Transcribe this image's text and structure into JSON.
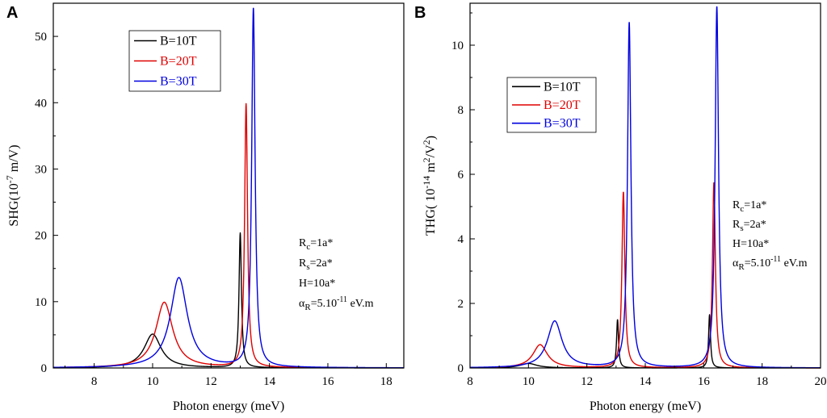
{
  "chart_data": [
    {
      "panel": "A",
      "type": "line",
      "ylabel": "SHG(10-7 m/V)",
      "ylabel_base": "SHG(10",
      "ylabel_exp": "-7",
      "ylabel_unit": " m/V)",
      "xlabel": "Photon energy (meV)",
      "xlim": [
        6.6,
        18.6
      ],
      "ylim": [
        0,
        55
      ],
      "xticks": [
        8,
        10,
        12,
        14,
        16,
        18
      ],
      "yticks": [
        0,
        10,
        20,
        30,
        40,
        50
      ],
      "legend": {
        "placement": "top-left"
      },
      "series": [
        {
          "name": "B=10T",
          "color": "#000000",
          "peaks": [
            {
              "x": 10.0,
              "y": 5.1,
              "gamma": 0.35
            },
            {
              "x": 13.0,
              "y": 20.3,
              "gamma": 0.05
            }
          ]
        },
        {
          "name": "B=20T",
          "color": "#e00000",
          "peaks": [
            {
              "x": 10.4,
              "y": 9.9,
              "gamma": 0.35
            },
            {
              "x": 13.2,
              "y": 39.7,
              "gamma": 0.06
            }
          ]
        },
        {
          "name": "B=30T",
          "color": "#0000e0",
          "peaks": [
            {
              "x": 10.9,
              "y": 13.6,
              "gamma": 0.35
            },
            {
              "x": 13.45,
              "y": 54.1,
              "gamma": 0.07
            }
          ]
        }
      ],
      "annotations": [
        {
          "base": "R",
          "sub": "c",
          "rest": "=1a*"
        },
        {
          "base": "R",
          "sub": "s",
          "rest": "=2a*"
        },
        {
          "base": "H=10a*",
          "sub": "",
          "rest": ""
        },
        {
          "base": "α",
          "sub": "R",
          "rest": "=5.10",
          "sup": "-11",
          "tail": " eV.m"
        }
      ]
    },
    {
      "panel": "B",
      "type": "line",
      "ylabel": "THG( 10-14 m2/V2)",
      "ylabel_base": "THG( 10",
      "ylabel_exp": "-14",
      "ylabel_mid": " m",
      "ylabel_exp2": "2",
      "ylabel_unit": "/V",
      "ylabel_exp3": "2",
      "ylabel_close": ")",
      "xlabel": "Photon energy (meV)",
      "xlim": [
        8,
        20
      ],
      "ylim": [
        0,
        11.3
      ],
      "xticks": [
        8,
        10,
        12,
        14,
        16,
        18,
        20
      ],
      "yticks": [
        0,
        2,
        4,
        6,
        8,
        10
      ],
      "legend": {
        "placement": "upper-left"
      },
      "series": [
        {
          "name": "B=10T",
          "color": "#000000",
          "peaks": [
            {
              "x": 10.0,
              "y": 0.14,
              "gamma": 0.35
            },
            {
              "x": 13.05,
              "y": 1.5,
              "gamma": 0.04
            },
            {
              "x": 16.2,
              "y": 1.65,
              "gamma": 0.04
            }
          ]
        },
        {
          "name": "B=20T",
          "color": "#e00000",
          "peaks": [
            {
              "x": 10.4,
              "y": 0.72,
              "gamma": 0.3
            },
            {
              "x": 13.25,
              "y": 5.45,
              "gamma": 0.06
            },
            {
              "x": 16.35,
              "y": 5.75,
              "gamma": 0.06
            }
          ]
        },
        {
          "name": "B=30T",
          "color": "#0000e0",
          "peaks": [
            {
              "x": 10.9,
              "y": 1.45,
              "gamma": 0.3
            },
            {
              "x": 13.45,
              "y": 10.7,
              "gamma": 0.07
            },
            {
              "x": 16.45,
              "y": 11.2,
              "gamma": 0.07
            }
          ]
        }
      ],
      "annotations": [
        {
          "base": "R",
          "sub": "c",
          "rest": "=1a*"
        },
        {
          "base": "R",
          "sub": "s",
          "rest": "=2a*"
        },
        {
          "base": "H=10a*",
          "sub": "",
          "rest": ""
        },
        {
          "base": "α",
          "sub": "R",
          "rest": "=5.10",
          "sup": "-11",
          "tail": " eV.m"
        }
      ]
    }
  ]
}
